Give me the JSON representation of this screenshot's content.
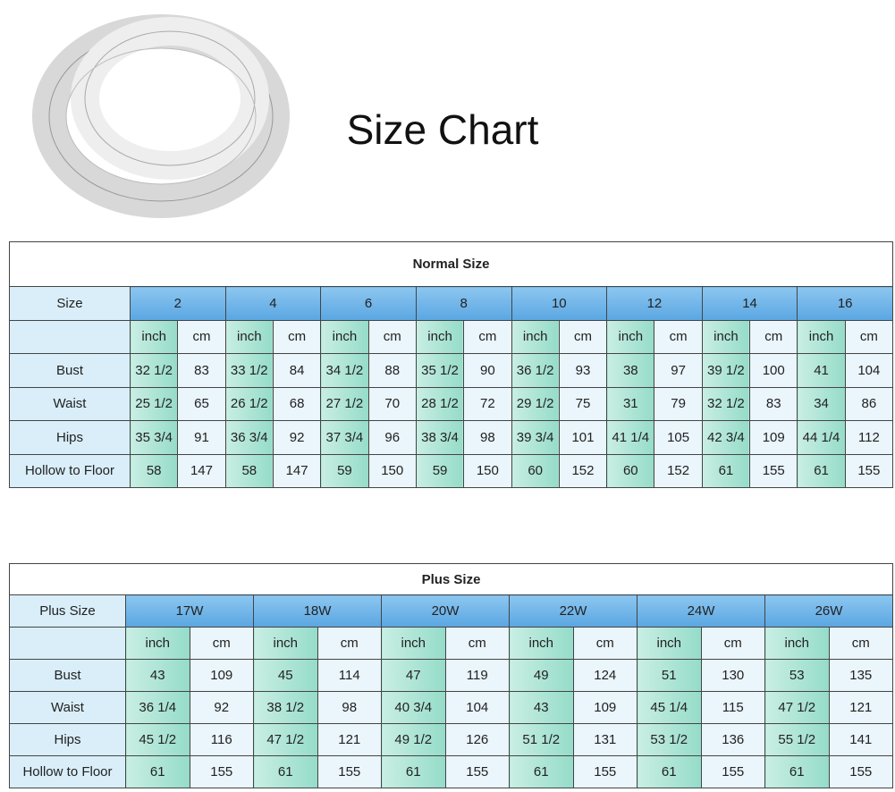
{
  "header": {
    "title": "Size Chart"
  },
  "normal": {
    "title": "Normal Size",
    "header_label": "Size",
    "sizes": [
      "2",
      "4",
      "6",
      "8",
      "10",
      "12",
      "14",
      "16"
    ],
    "units": [
      "inch",
      "cm",
      "inch",
      "cm",
      "inch",
      "cm",
      "inch",
      "cm",
      "inch",
      "cm",
      "inch",
      "cm",
      "inch",
      "cm",
      "inch",
      "cm"
    ],
    "rows": [
      {
        "label": "Bust",
        "values": [
          "32 1/2",
          "83",
          "33 1/2",
          "84",
          "34 1/2",
          "88",
          "35 1/2",
          "90",
          "36 1/2",
          "93",
          "38",
          "97",
          "39 1/2",
          "100",
          "41",
          "104"
        ]
      },
      {
        "label": "Waist",
        "values": [
          "25 1/2",
          "65",
          "26 1/2",
          "68",
          "27 1/2",
          "70",
          "28 1/2",
          "72",
          "29 1/2",
          "75",
          "31",
          "79",
          "32 1/2",
          "83",
          "34",
          "86"
        ]
      },
      {
        "label": "Hips",
        "values": [
          "35 3/4",
          "91",
          "36 3/4",
          "92",
          "37 3/4",
          "96",
          "38 3/4",
          "98",
          "39 3/4",
          "101",
          "41 1/4",
          "105",
          "42 3/4",
          "109",
          "44 1/4",
          "112"
        ]
      },
      {
        "label": "Hollow to Floor",
        "values": [
          "58",
          "147",
          "58",
          "147",
          "59",
          "150",
          "59",
          "150",
          "60",
          "152",
          "60",
          "152",
          "61",
          "155",
          "61",
          "155"
        ]
      }
    ]
  },
  "plus": {
    "title": "Plus Size",
    "header_label": "Plus Size",
    "sizes": [
      "17W",
      "18W",
      "20W",
      "22W",
      "24W",
      "26W"
    ],
    "units": [
      "inch",
      "cm",
      "inch",
      "cm",
      "inch",
      "cm",
      "inch",
      "cm",
      "inch",
      "cm",
      "inch",
      "cm"
    ],
    "rows": [
      {
        "label": "Bust",
        "values": [
          "43",
          "109",
          "45",
          "114",
          "47",
          "119",
          "49",
          "124",
          "51",
          "130",
          "53",
          "135"
        ]
      },
      {
        "label": "Waist",
        "values": [
          "36 1/4",
          "92",
          "38 1/2",
          "98",
          "40 3/4",
          "104",
          "43",
          "109",
          "45 1/4",
          "115",
          "47 1/2",
          "121"
        ]
      },
      {
        "label": "Hips",
        "values": [
          "45 1/2",
          "116",
          "47 1/2",
          "121",
          "49 1/2",
          "126",
          "51 1/2",
          "131",
          "53 1/2",
          "136",
          "55 1/2",
          "141"
        ]
      },
      {
        "label": "Hollow to Floor",
        "values": [
          "61",
          "155",
          "61",
          "155",
          "61",
          "155",
          "61",
          "155",
          "61",
          "155",
          "61",
          "155"
        ]
      }
    ]
  }
}
